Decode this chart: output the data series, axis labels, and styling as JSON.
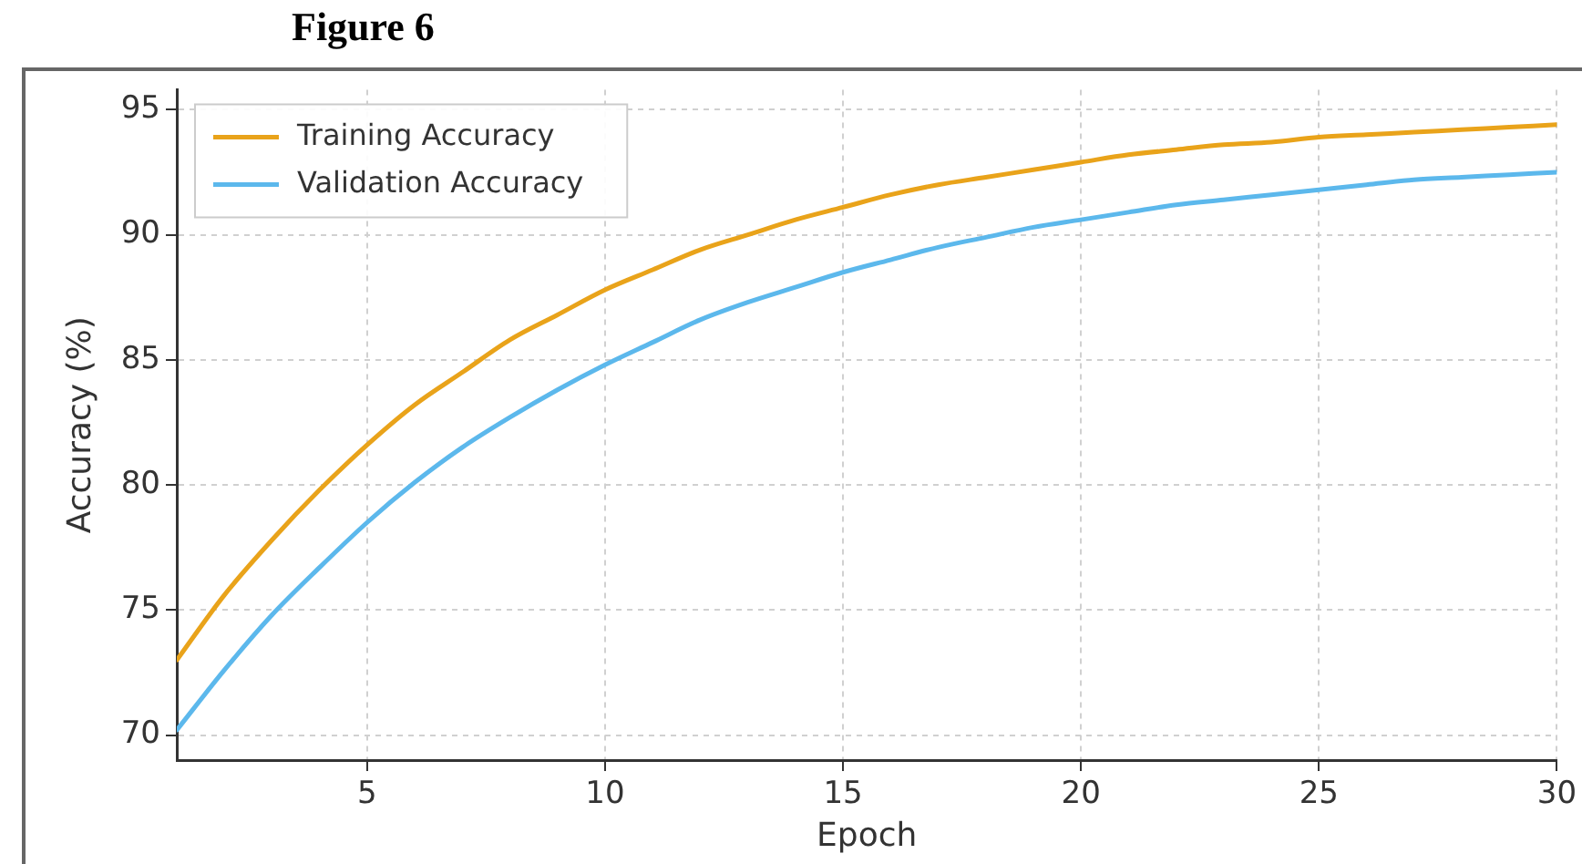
{
  "chart_data": {
    "type": "line",
    "title": "Figure 6",
    "xlabel": "Epoch",
    "ylabel": "Accuracy (%)",
    "x": [
      1,
      2,
      3,
      4,
      5,
      6,
      7,
      8,
      9,
      10,
      11,
      12,
      13,
      14,
      15,
      16,
      17,
      18,
      19,
      20,
      21,
      22,
      23,
      24,
      25,
      26,
      27,
      28,
      29,
      30
    ],
    "series": [
      {
        "name": "Training Accuracy",
        "color": "#e9a31a",
        "values": [
          73.0,
          75.6,
          77.8,
          79.8,
          81.6,
          83.2,
          84.5,
          85.8,
          86.8,
          87.8,
          88.6,
          89.4,
          90.0,
          90.6,
          91.1,
          91.6,
          92.0,
          92.3,
          92.6,
          92.9,
          93.2,
          93.4,
          93.6,
          93.7,
          93.9,
          94.0,
          94.1,
          94.2,
          94.3,
          94.4
        ]
      },
      {
        "name": "Validation Accuracy",
        "color": "#5cb8ec",
        "values": [
          70.2,
          72.6,
          74.8,
          76.7,
          78.5,
          80.1,
          81.5,
          82.7,
          83.8,
          84.8,
          85.7,
          86.6,
          87.3,
          87.9,
          88.5,
          89.0,
          89.5,
          89.9,
          90.3,
          90.6,
          90.9,
          91.2,
          91.4,
          91.6,
          91.8,
          92.0,
          92.2,
          92.3,
          92.4,
          92.5
        ]
      }
    ],
    "xlim": [
      1,
      30
    ],
    "xticks": [
      5,
      10,
      15,
      20,
      25,
      30
    ],
    "ylim": [
      69,
      95.8
    ],
    "yticks": [
      70,
      75,
      80,
      85,
      90,
      95
    ],
    "grid": true,
    "legend": "top left",
    "marker": "none",
    "line_style": "solid"
  }
}
